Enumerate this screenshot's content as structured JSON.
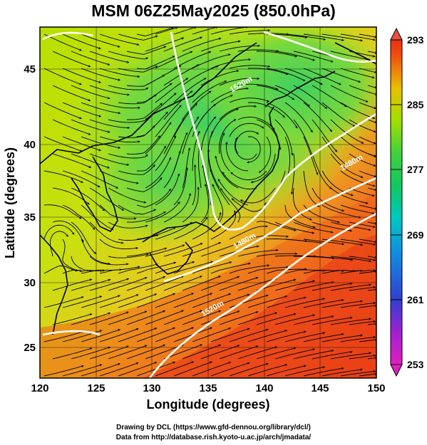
{
  "title": "MSM 06Z25May2025 (850.0hPa)",
  "map": {
    "x_axis": {
      "label": "Longitude (degrees)",
      "min": 120,
      "max": 150,
      "ticks": [
        120,
        125,
        130,
        135,
        140,
        145,
        150
      ]
    },
    "y_axis": {
      "label": "Latitude  (degrees)",
      "min": 22.6,
      "max": 47.6,
      "ticks": [
        25,
        30,
        35,
        40,
        45
      ]
    },
    "colorbar": {
      "min": 253,
      "max": 293,
      "labels": [
        253,
        261,
        269,
        277,
        285,
        293
      ]
    },
    "contour_labels": [
      "1520m",
      "1480m",
      "1480m",
      "1520m"
    ],
    "colors": {
      "cold": "#e020c0",
      "cool": "#0030c0",
      "mid": "#00c060",
      "warm": "#c8e000",
      "hot": "#e83010"
    }
  },
  "credits": {
    "line1": "Drawing by DCL (https://www.gfd-dennou.org/library/dcl/)",
    "line2": "Data from http://database.rish.kyoto-u.ac.jp/arch/jmadata/"
  }
}
